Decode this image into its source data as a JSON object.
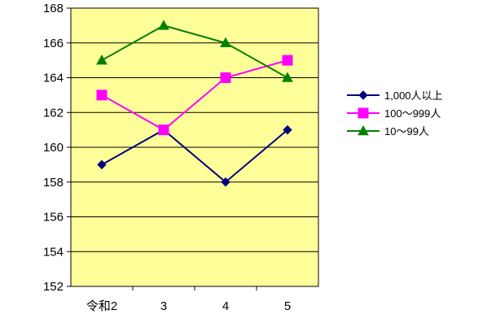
{
  "chart_data": {
    "type": "line",
    "categories": [
      "令和2",
      "3",
      "4",
      "5"
    ],
    "ylim": [
      152,
      168
    ],
    "yticks": [
      152,
      154,
      156,
      158,
      160,
      162,
      164,
      166,
      168
    ],
    "grid": true,
    "legend_position": "right",
    "plot_background": "#ffff99",
    "series": [
      {
        "name": "1,000人以上",
        "values": [
          159,
          161,
          158,
          161
        ],
        "color": "#000080",
        "marker": "diamond"
      },
      {
        "name": "100〜999人",
        "values": [
          163,
          161,
          164,
          165
        ],
        "color": "#ff00ff",
        "marker": "square"
      },
      {
        "name": "10〜99人",
        "values": [
          165,
          167,
          166,
          164
        ],
        "color": "#008000",
        "marker": "triangle"
      }
    ]
  }
}
